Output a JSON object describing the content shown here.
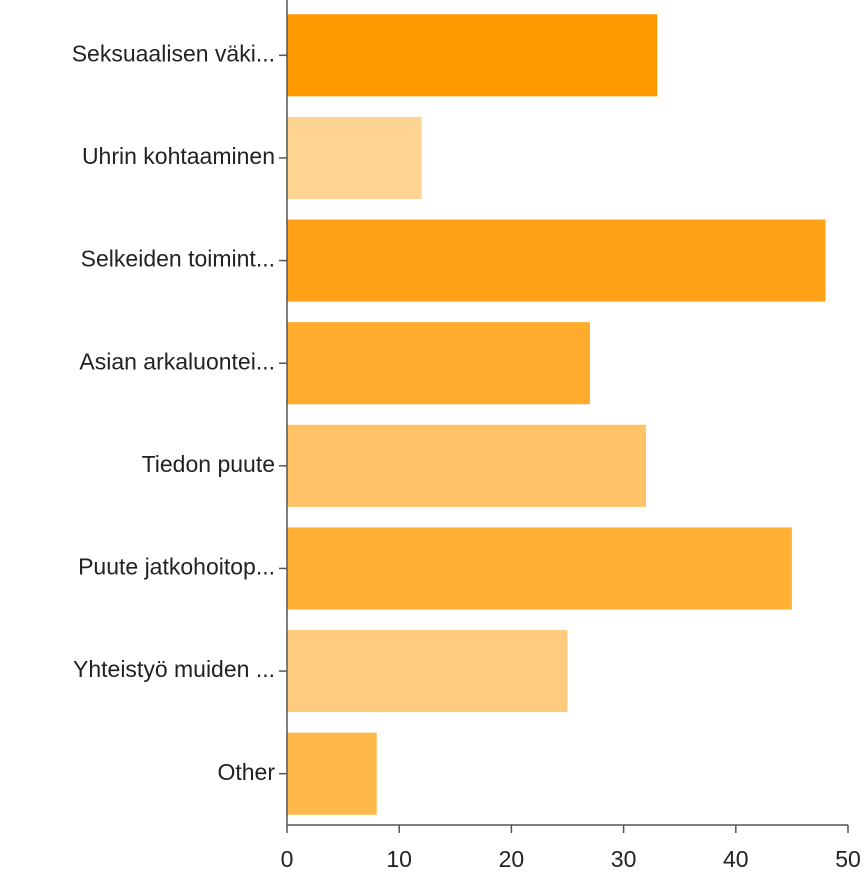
{
  "chart_data": {
    "type": "barh",
    "categories": [
      "Seksuaalisen väki...",
      "Uhrin kohtaaminen",
      "Selkeiden toimint...",
      "Asian arkaluontei...",
      "Tiedon puute",
      "Puute jatkohoitop...",
      "Yhteistyö muiden ...",
      "Other"
    ],
    "values": [
      33,
      12,
      48,
      27,
      32,
      45,
      25,
      8
    ],
    "colors": [
      "#ff9900",
      "#ffd391",
      "#ffa21a",
      "#ffab2b",
      "#ffc266",
      "#ffb035",
      "#ffcb7f",
      "#ffb84a"
    ],
    "xlim": [
      0,
      50
    ],
    "xticks": [
      0,
      10,
      20,
      30,
      40,
      50
    ],
    "grid": false
  }
}
